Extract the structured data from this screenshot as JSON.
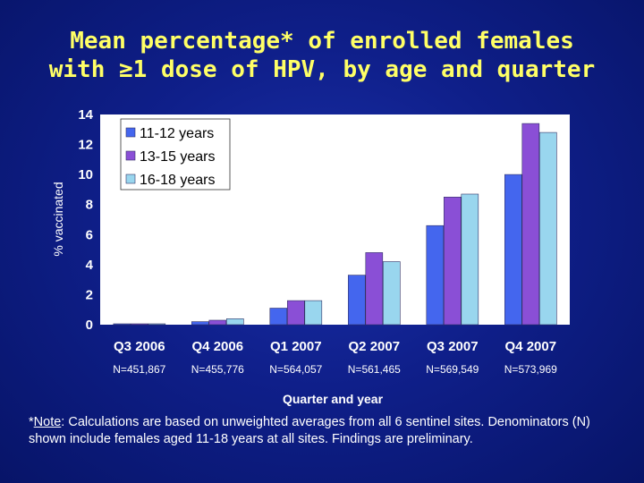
{
  "title": {
    "line1": "Mean percentage* of enrolled females",
    "line2": "with ≥1 dose of HPV, by age and quarter"
  },
  "footnote": {
    "prefix": "*",
    "note_word": "Note",
    "text": ":  Calculations are based on unweighted averages from all 6 sentinel sites. Denominators (N) shown include females aged 11-18 years at all sites.  Findings are preliminary."
  },
  "colors": {
    "background": "#0f1f8a",
    "title": "#ffff66",
    "plot_bg": "#ffffff",
    "series": [
      "#4466ee",
      "#8a4fd6",
      "#99d6ee"
    ]
  },
  "chart_data": {
    "type": "bar",
    "title": "Mean percentage* of enrolled females with ≥1 dose of HPV, by age and quarter",
    "xlabel": "Quarter and year",
    "ylabel": "% vaccinated",
    "ylim": [
      0,
      14
    ],
    "yticks": [
      0,
      2,
      4,
      6,
      8,
      10,
      12,
      14
    ],
    "grid": false,
    "legend_position": "top-left",
    "categories": [
      "Q3 2006",
      "Q4 2006",
      "Q1 2007",
      "Q2 2007",
      "Q3 2007",
      "Q4 2007"
    ],
    "denominators": [
      "N=451,867",
      "N=455,776",
      "N=564,057",
      "N=561,465",
      "N=569,549",
      "N=573,969"
    ],
    "series": [
      {
        "name": "11-12 years",
        "values": [
          0.02,
          0.2,
          1.1,
          3.3,
          6.6,
          10.0
        ]
      },
      {
        "name": "13-15 years",
        "values": [
          0.05,
          0.3,
          1.6,
          4.8,
          8.5,
          13.4
        ]
      },
      {
        "name": "16-18 years",
        "values": [
          0.03,
          0.4,
          1.6,
          4.2,
          8.7,
          12.8
        ]
      }
    ]
  }
}
